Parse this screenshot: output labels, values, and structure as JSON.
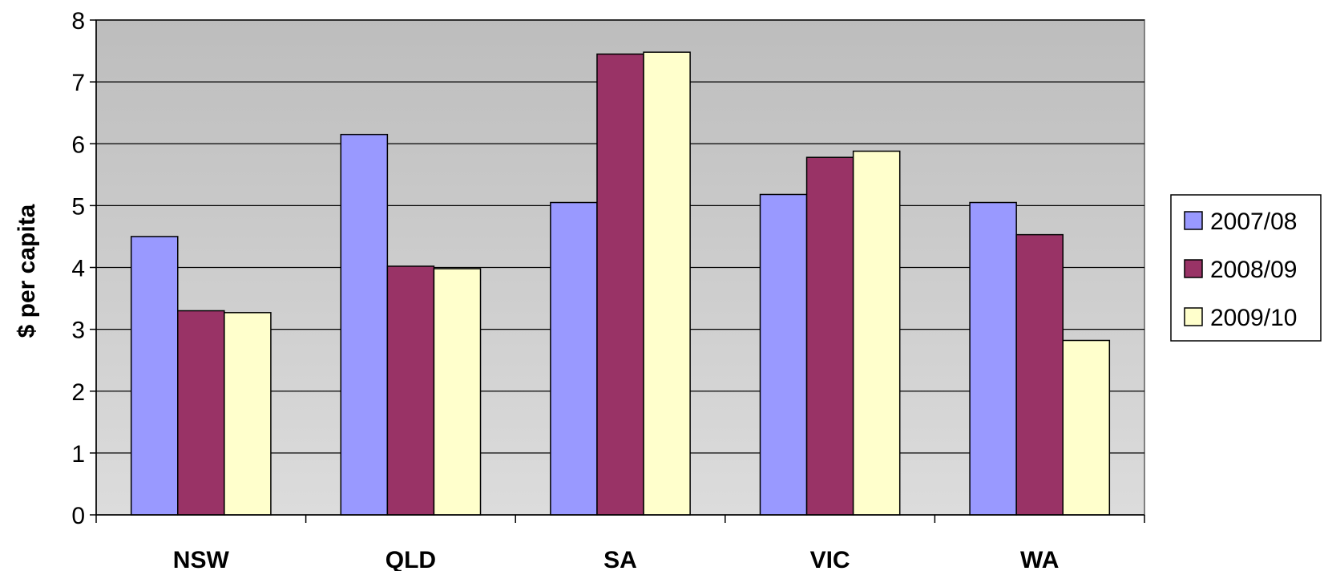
{
  "chart_data": {
    "type": "bar",
    "title": "",
    "xlabel": "",
    "ylabel": "$ per capita",
    "ylim": [
      0,
      8
    ],
    "yticks": [
      0,
      1,
      2,
      3,
      4,
      5,
      6,
      7,
      8
    ],
    "categories": [
      "NSW",
      "QLD",
      "SA",
      "VIC",
      "WA"
    ],
    "series": [
      {
        "name": "2007/08",
        "color": "#9999ff",
        "values": [
          4.5,
          6.15,
          5.05,
          5.18,
          5.05
        ]
      },
      {
        "name": "2008/09",
        "color": "#993366",
        "values": [
          3.3,
          4.02,
          7.45,
          5.78,
          4.53
        ]
      },
      {
        "name": "2009/10",
        "color": "#ffffcc",
        "values": [
          3.27,
          3.98,
          7.48,
          5.88,
          2.82
        ]
      }
    ],
    "grid": true,
    "legend_position": "right",
    "plot_background": "#c0c0c0"
  }
}
